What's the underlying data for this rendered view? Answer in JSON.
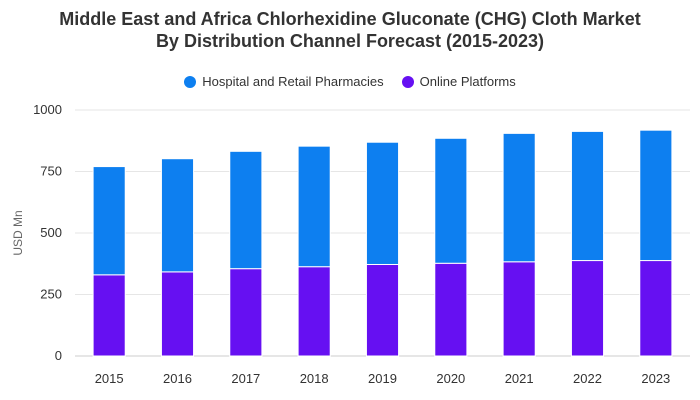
{
  "chart_data": {
    "type": "bar",
    "stacked": true,
    "title_lines": [
      "Middle East and Africa Chlorhexidine Gluconate (CHG) Cloth Market",
      "By Distribution Channel Forecast (2015-2023)"
    ],
    "ylabel": "USD Mn",
    "xlabel": "",
    "categories": [
      "2015",
      "2016",
      "2017",
      "2018",
      "2019",
      "2020",
      "2021",
      "2022",
      "2023"
    ],
    "series": [
      {
        "name": "Online Platforms",
        "color": "#6610f2",
        "values": [
          330,
          342,
          355,
          363,
          372,
          377,
          383,
          388,
          388
        ]
      },
      {
        "name": "Hospital and Retail Pharmacies",
        "color": "#0d7ff0",
        "values": [
          440,
          460,
          477,
          490,
          497,
          508,
          522,
          525,
          530
        ]
      }
    ],
    "legend_order": [
      "Hospital and Retail Pharmacies",
      "Online Platforms"
    ],
    "yticks": [
      "0",
      "250",
      "500",
      "750",
      "1000"
    ],
    "ylim": [
      0,
      1000
    ],
    "grid": true,
    "legend_position": "top"
  }
}
